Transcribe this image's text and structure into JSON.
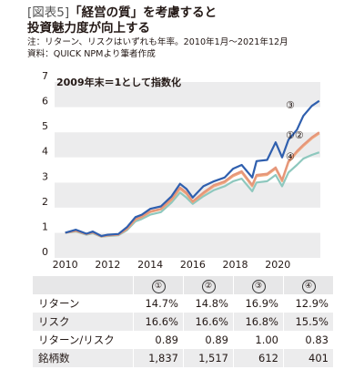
{
  "header": {
    "figure_label": "[図表5]",
    "title_line1": "「経営の質」を考慮すると",
    "title_line2": "投資魅力度が向上する",
    "note_period": "注：リターン、リスクはいずれも年率。2010年1月〜2021年12月",
    "note_source": "資料：QUICK NPMより筆者作成"
  },
  "chart_data": {
    "type": "line",
    "inner_label": "2009年末＝1として指数化",
    "x_ticks": [
      "2010",
      "2012",
      "2014",
      "2016",
      "2018",
      "2020"
    ],
    "y_ticks": [
      "0",
      "1",
      "2",
      "3",
      "4",
      "5",
      "6",
      "7"
    ],
    "xlim": [
      2009.5,
      2022
    ],
    "ylim": [
      0,
      7
    ],
    "grid": "horizontal bands",
    "series": [
      {
        "name": "③",
        "color": "#2f5fae",
        "x": [
          2010.0,
          2010.5,
          2011.0,
          2011.3,
          2011.7,
          2012.0,
          2012.5,
          2012.9,
          2013.3,
          2013.6,
          2014.0,
          2014.5,
          2015.0,
          2015.4,
          2015.7,
          2016.0,
          2016.5,
          2017.0,
          2017.5,
          2017.9,
          2018.3,
          2018.8,
          2019.0,
          2019.5,
          2019.9,
          2020.2,
          2020.5,
          2020.9,
          2021.2,
          2021.6,
          2021.95
        ],
        "y": [
          1.0,
          1.12,
          0.96,
          1.05,
          0.87,
          0.92,
          0.95,
          1.22,
          1.62,
          1.72,
          1.95,
          2.05,
          2.45,
          2.95,
          2.75,
          2.4,
          2.85,
          3.05,
          3.2,
          3.55,
          3.7,
          3.2,
          3.85,
          3.9,
          4.6,
          4.0,
          4.7,
          5.1,
          5.65,
          6.05,
          6.25
        ]
      },
      {
        "name": "①",
        "color": "#e5967a",
        "x": [
          2010.0,
          2010.5,
          2011.0,
          2011.3,
          2011.7,
          2012.0,
          2012.5,
          2012.9,
          2013.3,
          2013.6,
          2014.0,
          2014.5,
          2015.0,
          2015.4,
          2015.7,
          2016.0,
          2016.5,
          2017.0,
          2017.5,
          2017.9,
          2018.3,
          2018.8,
          2019.0,
          2019.5,
          2019.9,
          2020.2,
          2020.5,
          2020.9,
          2021.2,
          2021.6,
          2021.95
        ],
        "y": [
          1.0,
          1.08,
          0.95,
          1.02,
          0.86,
          0.9,
          0.93,
          1.15,
          1.55,
          1.65,
          1.85,
          1.95,
          2.35,
          2.8,
          2.6,
          2.25,
          2.6,
          2.9,
          3.05,
          3.3,
          3.45,
          2.9,
          3.3,
          3.35,
          3.6,
          3.1,
          3.85,
          4.25,
          4.5,
          4.8,
          5.0
        ]
      },
      {
        "name": "②",
        "color": "#f2aa7e",
        "x": [
          2010.0,
          2010.5,
          2011.0,
          2011.3,
          2011.7,
          2012.0,
          2012.5,
          2012.9,
          2013.3,
          2013.6,
          2014.0,
          2014.5,
          2015.0,
          2015.4,
          2015.7,
          2016.0,
          2016.5,
          2017.0,
          2017.5,
          2017.9,
          2018.3,
          2018.8,
          2019.0,
          2019.5,
          2019.9,
          2020.2,
          2020.5,
          2020.9,
          2021.2,
          2021.6,
          2021.95
        ],
        "y": [
          1.0,
          1.07,
          0.94,
          1.01,
          0.85,
          0.89,
          0.92,
          1.14,
          1.52,
          1.62,
          1.82,
          1.93,
          2.3,
          2.75,
          2.55,
          2.22,
          2.55,
          2.85,
          3.0,
          3.25,
          3.4,
          2.85,
          3.25,
          3.3,
          3.55,
          3.05,
          3.8,
          4.2,
          4.45,
          4.75,
          4.95
        ]
      },
      {
        "name": "④",
        "color": "#8ec8be",
        "x": [
          2010.0,
          2010.5,
          2011.0,
          2011.3,
          2011.7,
          2012.0,
          2012.5,
          2012.9,
          2013.3,
          2013.6,
          2014.0,
          2014.5,
          2015.0,
          2015.4,
          2015.7,
          2016.0,
          2016.5,
          2017.0,
          2017.5,
          2017.9,
          2018.3,
          2018.8,
          2019.0,
          2019.5,
          2019.9,
          2020.2,
          2020.5,
          2020.9,
          2021.2,
          2021.6,
          2021.95
        ],
        "y": [
          1.0,
          1.05,
          0.92,
          0.98,
          0.84,
          0.87,
          0.9,
          1.1,
          1.45,
          1.55,
          1.72,
          1.82,
          2.2,
          2.6,
          2.4,
          2.15,
          2.45,
          2.7,
          2.85,
          3.05,
          3.15,
          2.65,
          3.0,
          3.05,
          3.3,
          2.85,
          3.4,
          3.7,
          3.95,
          4.1,
          4.2
        ]
      }
    ],
    "end_labels": [
      {
        "text": "③",
        "y": 6.1
      },
      {
        "text": "①②",
        "y": 4.9
      },
      {
        "text": "④",
        "y": 4.05
      }
    ]
  },
  "table": {
    "headers": [
      "",
      "①",
      "②",
      "③",
      "④"
    ],
    "rows": [
      {
        "label": "リターン",
        "values": [
          "14.7%",
          "14.8%",
          "16.9%",
          "12.9%"
        ]
      },
      {
        "label": "リスク",
        "values": [
          "16.6%",
          "16.6%",
          "16.8%",
          "15.5%"
        ]
      },
      {
        "label": "リターン/リスク",
        "values": [
          "0.89",
          "0.89",
          "1.00",
          "0.83"
        ]
      },
      {
        "label": "銘柄数",
        "values": [
          "1,837",
          "1,517",
          "612",
          "401"
        ]
      }
    ]
  }
}
